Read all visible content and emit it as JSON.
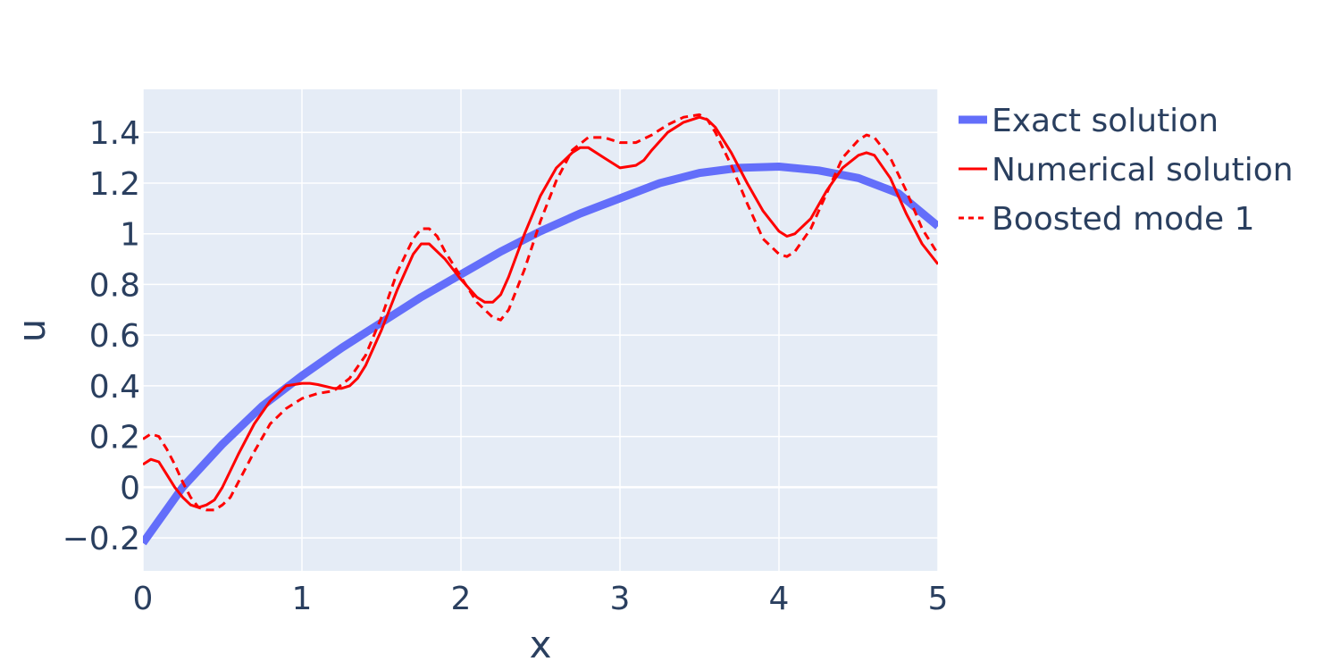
{
  "chart_data": {
    "type": "line",
    "title": "",
    "xlabel": "x",
    "ylabel": "u",
    "xlim": [
      0,
      5
    ],
    "ylim": [
      -0.33,
      1.57
    ],
    "x_ticks": [
      0,
      1,
      2,
      3,
      4,
      5
    ],
    "x_tick_labels": [
      "0",
      "1",
      "2",
      "3",
      "4",
      "5"
    ],
    "y_ticks": [
      -0.2,
      0,
      0.2,
      0.4,
      0.6,
      0.8,
      1,
      1.2,
      1.4
    ],
    "y_tick_labels": [
      "−0.2",
      "0",
      "0.2",
      "0.4",
      "0.6",
      "0.8",
      "1",
      "1.2",
      "1.4"
    ],
    "grid": true,
    "background": "#e5ecf6",
    "legend_position": "top-right outside",
    "series": [
      {
        "name": "Exact solution",
        "color": "#636efa",
        "style": "solid-thick",
        "x": [
          0,
          0.25,
          0.5,
          0.75,
          1,
          1.25,
          1.5,
          1.75,
          2,
          2.25,
          2.5,
          2.75,
          3,
          3.25,
          3.5,
          3.75,
          4,
          4.25,
          4.5,
          4.75,
          5
        ],
        "y": [
          -0.22,
          0.0,
          0.17,
          0.32,
          0.44,
          0.55,
          0.65,
          0.75,
          0.84,
          0.93,
          1.01,
          1.08,
          1.14,
          1.2,
          1.24,
          1.26,
          1.265,
          1.25,
          1.22,
          1.16,
          1.03
        ]
      },
      {
        "name": "Numerical solution",
        "color": "#ff0000",
        "style": "solid",
        "x": [
          0,
          0.05,
          0.1,
          0.15,
          0.2,
          0.25,
          0.3,
          0.35,
          0.4,
          0.45,
          0.5,
          0.6,
          0.7,
          0.8,
          0.9,
          1.0,
          1.05,
          1.1,
          1.2,
          1.25,
          1.3,
          1.35,
          1.4,
          1.5,
          1.6,
          1.7,
          1.75,
          1.8,
          1.9,
          2.0,
          2.1,
          2.15,
          2.2,
          2.25,
          2.3,
          2.4,
          2.5,
          2.6,
          2.7,
          2.75,
          2.8,
          2.9,
          3.0,
          3.1,
          3.15,
          3.2,
          3.3,
          3.4,
          3.5,
          3.55,
          3.6,
          3.7,
          3.8,
          3.9,
          4.0,
          4.05,
          4.1,
          4.2,
          4.3,
          4.4,
          4.5,
          4.55,
          4.6,
          4.7,
          4.8,
          4.9,
          5.0
        ],
        "y": [
          0.09,
          0.11,
          0.1,
          0.05,
          0.0,
          -0.04,
          -0.07,
          -0.08,
          -0.07,
          -0.05,
          0.0,
          0.13,
          0.25,
          0.34,
          0.4,
          0.41,
          0.41,
          0.405,
          0.39,
          0.39,
          0.4,
          0.43,
          0.48,
          0.62,
          0.78,
          0.92,
          0.96,
          0.96,
          0.9,
          0.82,
          0.75,
          0.73,
          0.73,
          0.76,
          0.83,
          1.0,
          1.15,
          1.26,
          1.32,
          1.34,
          1.34,
          1.3,
          1.26,
          1.27,
          1.29,
          1.33,
          1.4,
          1.44,
          1.46,
          1.45,
          1.42,
          1.32,
          1.2,
          1.09,
          1.01,
          0.99,
          1.0,
          1.06,
          1.17,
          1.26,
          1.31,
          1.32,
          1.31,
          1.22,
          1.08,
          0.96,
          0.88
        ]
      },
      {
        "name": "Boosted mode 1",
        "color": "#ff0000",
        "style": "dash",
        "x": [
          0,
          0.05,
          0.1,
          0.15,
          0.2,
          0.25,
          0.3,
          0.35,
          0.4,
          0.45,
          0.5,
          0.55,
          0.6,
          0.7,
          0.8,
          0.9,
          1.0,
          1.1,
          1.2,
          1.3,
          1.4,
          1.5,
          1.6,
          1.7,
          1.75,
          1.8,
          1.85,
          1.9,
          2.0,
          2.1,
          2.2,
          2.25,
          2.3,
          2.4,
          2.5,
          2.6,
          2.7,
          2.8,
          2.9,
          3.0,
          3.1,
          3.2,
          3.3,
          3.4,
          3.5,
          3.55,
          3.6,
          3.7,
          3.8,
          3.9,
          4.0,
          4.05,
          4.1,
          4.2,
          4.3,
          4.4,
          4.5,
          4.55,
          4.6,
          4.7,
          4.8,
          4.9,
          5.0
        ],
        "y": [
          0.19,
          0.21,
          0.2,
          0.15,
          0.09,
          0.02,
          -0.04,
          -0.08,
          -0.09,
          -0.09,
          -0.07,
          -0.04,
          0.02,
          0.14,
          0.25,
          0.31,
          0.35,
          0.37,
          0.38,
          0.43,
          0.52,
          0.67,
          0.85,
          0.98,
          1.02,
          1.02,
          0.99,
          0.93,
          0.83,
          0.73,
          0.67,
          0.66,
          0.7,
          0.86,
          1.05,
          1.21,
          1.33,
          1.38,
          1.38,
          1.36,
          1.36,
          1.39,
          1.43,
          1.46,
          1.47,
          1.45,
          1.4,
          1.27,
          1.12,
          0.98,
          0.92,
          0.91,
          0.93,
          1.02,
          1.16,
          1.3,
          1.37,
          1.39,
          1.38,
          1.3,
          1.17,
          1.02,
          0.92
        ]
      }
    ]
  }
}
